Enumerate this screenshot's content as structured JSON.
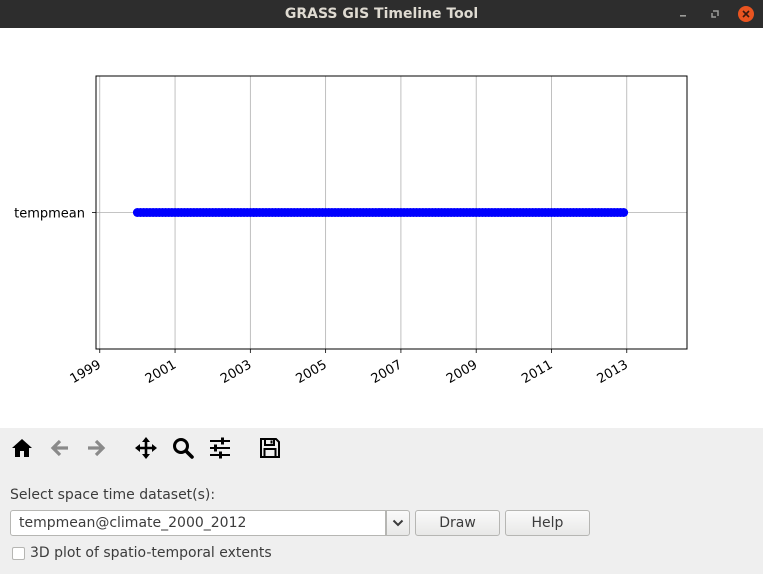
{
  "window": {
    "title": "GRASS GIS Timeline Tool"
  },
  "chart_data": {
    "type": "scatter",
    "title": "",
    "xlabel": "",
    "ylabel": "",
    "categories": [
      "tempmean"
    ],
    "x_ticks": [
      "1999",
      "2001",
      "2003",
      "2005",
      "2007",
      "2009",
      "2011",
      "2013"
    ],
    "xlim": [
      1998.9,
      2014.6
    ],
    "x_start": 2000.0,
    "x_end": 2013.0,
    "point_count": 156,
    "grid": true,
    "series": [
      {
        "category": "tempmean",
        "color": "#0000ff"
      }
    ]
  },
  "toolbar": {
    "icons": [
      "home-icon",
      "back-icon",
      "forward-icon",
      "pan-icon",
      "zoom-icon",
      "configure-icon",
      "save-icon"
    ]
  },
  "controls": {
    "select_label": "Select space time dataset(s):",
    "dataset_value": "tempmean@climate_2000_2012",
    "draw_label": "Draw",
    "help_label": "Help",
    "checkbox_label": "3D plot of spatio-temporal extents",
    "checkbox_checked": false
  }
}
